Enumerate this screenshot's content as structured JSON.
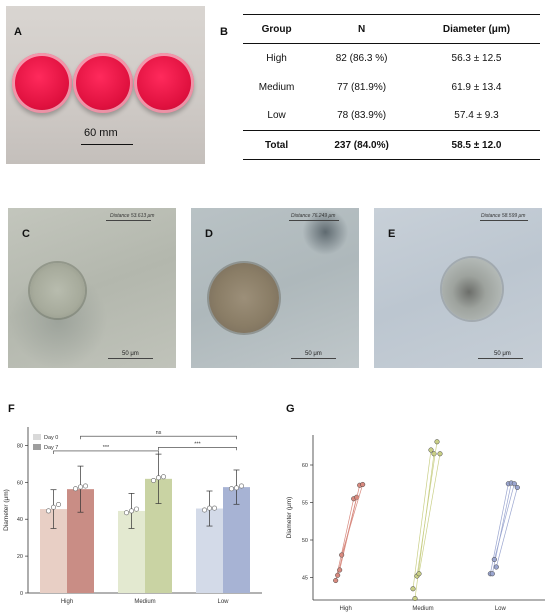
{
  "panels": {
    "a": "A",
    "b": "B",
    "c": "C",
    "d": "D",
    "e": "E",
    "f": "F",
    "g": "G"
  },
  "photo": {
    "scale_label": "60 mm"
  },
  "table": {
    "headers": [
      "Group",
      "N",
      "Diameter (μm)"
    ],
    "rows": [
      [
        "High",
        "82 (86.3 %)",
        "56.3 ± 12.5"
      ],
      [
        "Medium",
        "77 (81.9%)",
        "61.9 ± 13.4"
      ],
      [
        "Low",
        "78 (83.9%)",
        "57.4 ± 9.3"
      ]
    ],
    "total": [
      "Total",
      "237 (84.0%)",
      "58.5 ± 12.0"
    ]
  },
  "micrographs": [
    {
      "distance": "Distance 53.613 μm",
      "scale": "50 μm"
    },
    {
      "distance": "Distance 76.249 μm",
      "scale": "50 μm"
    },
    {
      "distance": "Distance 58.599 μm",
      "scale": "50 μm"
    }
  ],
  "chart_data": [
    {
      "type": "bar",
      "ylabel": "Diameter (μm)",
      "ylim": [
        0,
        90
      ],
      "yticks": [
        0,
        20,
        40,
        60,
        80
      ],
      "categories": [
        "High",
        "Medium",
        "Low"
      ],
      "series": [
        {
          "name": "Day 0",
          "values": [
            45.5,
            44.5,
            45.8
          ],
          "sd": [
            10.5,
            9.5,
            9.5
          ],
          "colors": [
            "#e8cfc5",
            "#e3e9d0",
            "#d3dae8"
          ]
        },
        {
          "name": "Day 7",
          "values": [
            56.3,
            61.9,
            57.4
          ],
          "sd": [
            12.5,
            13.4,
            9.3
          ],
          "colors": [
            "#c98d85",
            "#c9d3a3",
            "#a7b3d4"
          ]
        }
      ],
      "points": {
        "day0": [
          [
            44.5,
            46.5,
            48.0
          ],
          [
            43.5,
            44.5,
            45.5
          ],
          [
            45.0,
            46.0,
            46.0
          ]
        ],
        "day7": [
          [
            56.5,
            57.5,
            58.0
          ],
          [
            61.0,
            62.5,
            63.0
          ],
          [
            56.5,
            57.0,
            58.0
          ]
        ]
      },
      "significance": [
        {
          "label": "ns",
          "from": "High Day 7",
          "to": "Low Day 7",
          "y": 85
        },
        {
          "label": "***",
          "from": "High Day 0",
          "to": "Medium Day 7",
          "y": 77
        },
        {
          "label": "***",
          "from": "Medium Day 7",
          "to": "Low Day 7",
          "y": 79
        }
      ],
      "legend": "top-left",
      "grid": false
    },
    {
      "type": "scatter",
      "ylabel": "Diameter (μm)",
      "ylim": [
        42,
        64
      ],
      "yticks": [
        45,
        50,
        55,
        60
      ],
      "categories": [
        "High",
        "Medium",
        "Low"
      ],
      "pairs": [
        {
          "group": "High",
          "color": "#d88a7f",
          "pairs": [
            [
              44.6,
              55.5
            ],
            [
              45.3,
              55.7
            ],
            [
              46.0,
              57.3
            ],
            [
              48.0,
              57.4
            ]
          ]
        },
        {
          "group": "Medium",
          "color": "#c9cf86",
          "pairs": [
            [
              43.5,
              62.0
            ],
            [
              42.2,
              61.5
            ],
            [
              45.2,
              63.1
            ],
            [
              45.5,
              61.5
            ]
          ]
        },
        {
          "group": "Low",
          "color": "#9ba6d0",
          "pairs": [
            [
              45.5,
              57.5
            ],
            [
              45.5,
              57.6
            ],
            [
              47.4,
              57.5
            ],
            [
              46.4,
              57.0
            ]
          ]
        }
      ],
      "grid": false
    }
  ]
}
